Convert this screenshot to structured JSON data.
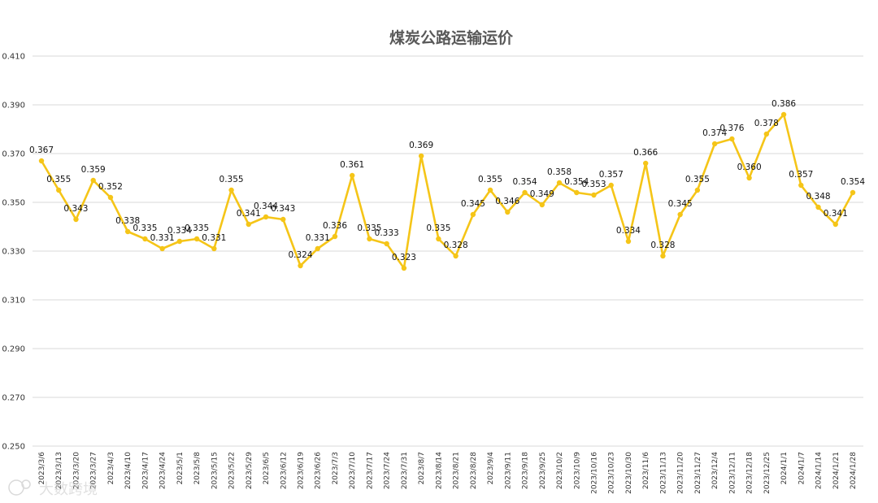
{
  "chart_data": {
    "type": "line",
    "title": "煤炭公路运输运价",
    "xlabel": "",
    "ylabel": "",
    "ylim": [
      0.25,
      0.41
    ],
    "yticks": [
      "0.250",
      "0.270",
      "0.290",
      "0.310",
      "0.330",
      "0.350",
      "0.370",
      "0.390",
      "0.410"
    ],
    "grid": true,
    "legend": "none",
    "color": "#F5C518",
    "categories": [
      "2023/3/6",
      "2023/3/13",
      "2023/3/20",
      "2023/3/27",
      "2023/4/3",
      "2023/4/10",
      "2023/4/17",
      "2023/4/24",
      "2023/5/1",
      "2023/5/8",
      "2023/5/15",
      "2023/5/22",
      "2023/5/29",
      "2023/6/5",
      "2023/6/12",
      "2023/6/19",
      "2023/6/26",
      "2023/7/3",
      "2023/7/10",
      "2023/7/17",
      "2023/7/24",
      "2023/7/31",
      "2023/8/7",
      "2023/8/14",
      "2023/8/21",
      "2023/8/28",
      "2023/9/4",
      "2023/9/11",
      "2023/9/18",
      "2023/9/25",
      "2023/10/2",
      "2023/10/9",
      "2023/10/16",
      "2023/10/23",
      "2023/10/30",
      "2023/11/6",
      "2023/11/13",
      "2023/11/20",
      "2023/11/27",
      "2023/12/4",
      "2023/12/11",
      "2023/12/18",
      "2023/12/25",
      "2024/1/1",
      "2024/1/7",
      "2024/1/14",
      "2024/1/21",
      "2024/1/28"
    ],
    "series": [
      {
        "values": [
          0.367,
          0.355,
          0.343,
          0.359,
          0.352,
          0.338,
          0.335,
          0.331,
          0.334,
          0.335,
          0.331,
          0.355,
          0.341,
          0.344,
          0.343,
          0.324,
          0.331,
          0.336,
          0.361,
          0.335,
          0.333,
          0.323,
          0.369,
          0.335,
          0.328,
          0.345,
          0.355,
          0.346,
          0.354,
          0.349,
          0.358,
          0.354,
          0.353,
          0.357,
          0.334,
          0.366,
          0.328,
          0.345,
          0.355,
          0.374,
          0.376,
          0.36,
          0.378,
          0.386,
          0.357,
          0.348,
          0.341,
          0.354
        ]
      }
    ],
    "watermark": "大数跨境"
  }
}
